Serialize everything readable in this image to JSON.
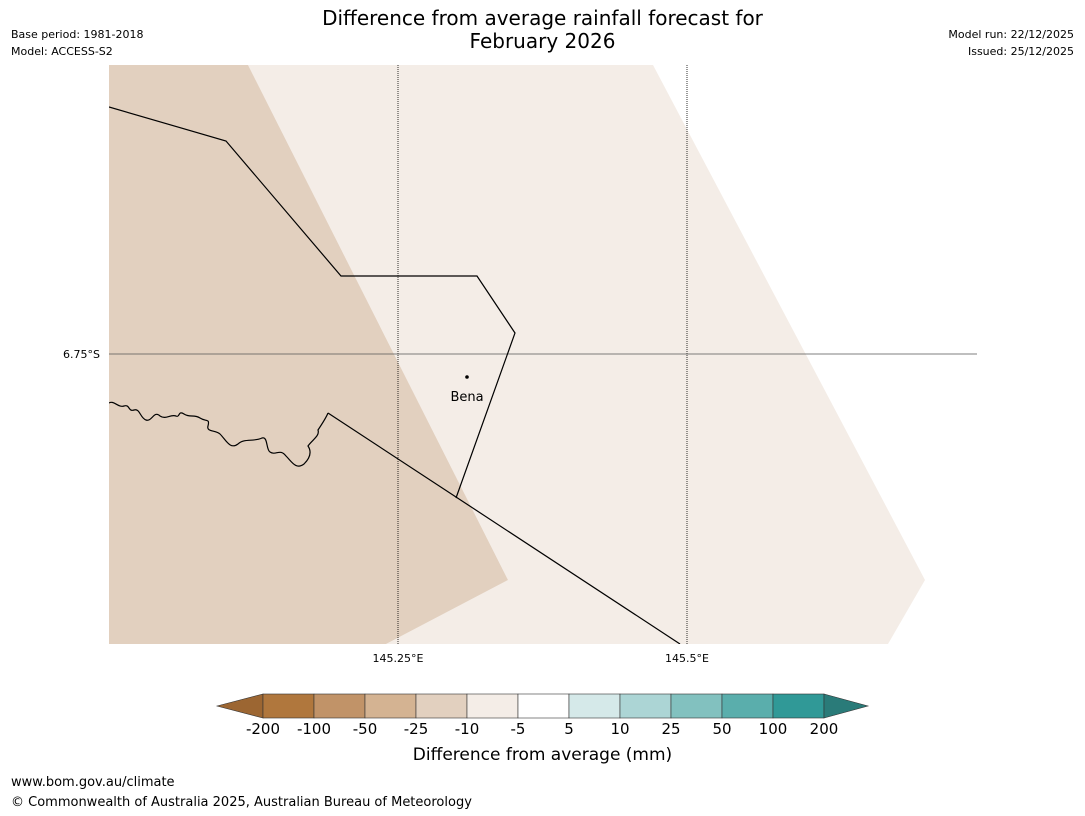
{
  "title_line1": "Difference from average rainfall forecast for",
  "title_line2": "February 2026",
  "base_period": "Base period: 1981-2018",
  "model": "Model: ACCESS-S2",
  "model_run": "Model run: 22/12/2025",
  "issued": "Issued: 25/12/2025",
  "map": {
    "lat_label": "6.75°S",
    "lon_labels": [
      "145.25°E",
      "145.5°E"
    ],
    "place": "Bena",
    "fill_colors": {
      "left_zone": "#e2d0bf",
      "right_zone": "#f4ede7"
    }
  },
  "colorbar": {
    "title": "Difference from average (mm)",
    "ticks": [
      "-200",
      "-100",
      "-50",
      "-25",
      "-10",
      "-5",
      "5",
      "10",
      "25",
      "50",
      "100",
      "200"
    ],
    "colors": [
      "#9c6632",
      "#b0773d",
      "#c19368",
      "#d4b392",
      "#e2d0bf",
      "#f4ede7",
      "#ffffff",
      "#d5e9e9",
      "#acd5d5",
      "#82c1bf",
      "#5aaeac",
      "#309997",
      "#2a7b79"
    ]
  },
  "footer_url": "www.bom.gov.au/climate",
  "footer_copyright": "© Commonwealth of Australia 2025, Australian Bureau of Meteorology"
}
